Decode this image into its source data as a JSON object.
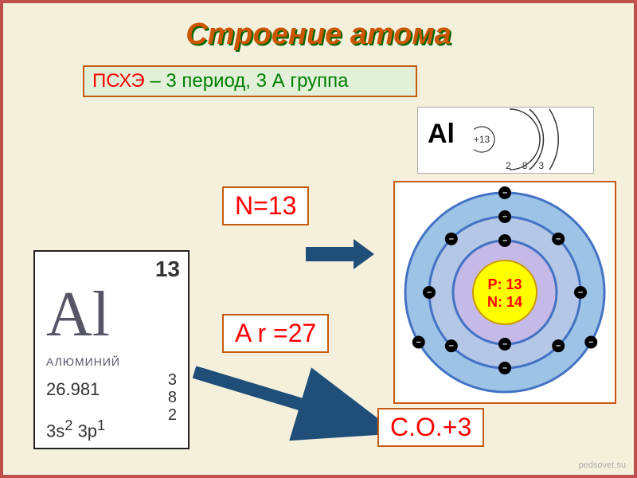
{
  "title": "Строение атома",
  "subtitle": {
    "highlight": "ПСХЭ",
    "rest": " – 3 период, 3 А группа"
  },
  "boxes": {
    "n": "N=13",
    "ar": "A r =27",
    "co": "С.О.+3"
  },
  "element_tile": {
    "atomic_number": "13",
    "symbol": "Al",
    "name": "АЛЮМИНИЙ",
    "mass": "26.981",
    "shells": [
      "3",
      "8",
      "2"
    ],
    "config_parts": [
      "3s",
      "2",
      " 3p",
      "1"
    ],
    "colors": {
      "text": "#556677",
      "border": "#222222"
    }
  },
  "shell_diagram_small": {
    "symbol": "Al",
    "center": "+13",
    "counts": [
      "2",
      "8",
      "3"
    ],
    "arc_colors": "#333333"
  },
  "bohr": {
    "proton_label": "P: 13",
    "neutron_label": "N: 14",
    "colors": {
      "nucleus_fill": "#ffff00",
      "nucleus_text": "#ff0000",
      "shell1_fill": "#c5b9e8",
      "shell1_stroke": "#4472c4",
      "shell2_fill": "#b4c7e7",
      "shell2_stroke": "#4472c4",
      "shell3_fill": "#9dc3e6",
      "shell3_stroke": "#4472c4",
      "electron_fill": "#000000",
      "electron_minus": "#ffffff",
      "border": "#c55a11"
    },
    "shells": [
      {
        "radius": 65,
        "electrons": 2
      },
      {
        "radius": 95,
        "electrons": 8
      },
      {
        "radius": 125,
        "electrons": 3
      }
    ]
  },
  "arrows": {
    "color": "#1f4e79"
  },
  "watermark": "pedsovet.su"
}
